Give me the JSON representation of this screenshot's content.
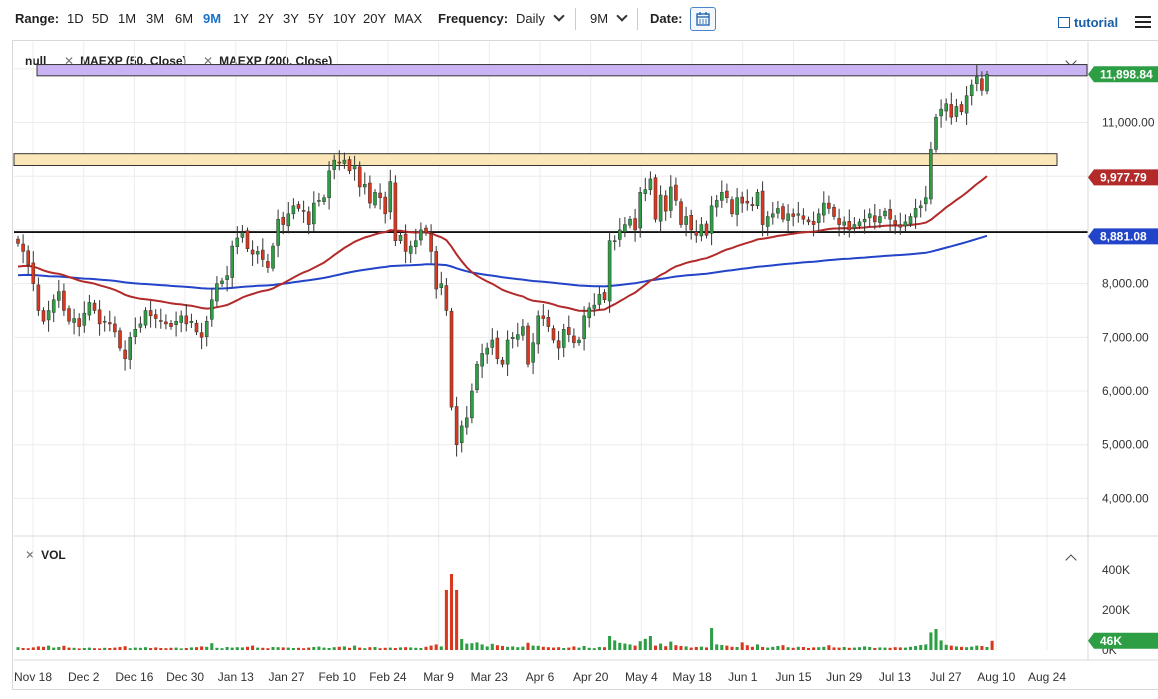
{
  "toolbar": {
    "range_label": "Range:",
    "ranges": [
      "1D",
      "5D",
      "1M",
      "3M",
      "6M",
      "9M",
      "1Y",
      "2Y",
      "3Y",
      "5Y",
      "10Y",
      "20Y",
      "MAX"
    ],
    "active_range": "9M",
    "frequency_label": "Frequency:",
    "frequency_value": "Daily",
    "period_value": "9M",
    "date_label": "Date:",
    "tutorial_label": "tutorial"
  },
  "legend": {
    "symbol": "null",
    "study1": "MAEXP (50, Close)",
    "study2": "MAEXP (200, Close)",
    "vol": "VOL"
  },
  "colors": {
    "up": "#2e9e45",
    "down": "#d9381e",
    "ma50": "#b22a2a",
    "ma200": "#2244c8",
    "zone_resistance": "#c9b3f2",
    "zone_support": "#fbe6b8",
    "accent": "#1a73c8"
  },
  "chart_data": {
    "type": "candlestick",
    "x_labels": [
      "Nov 18",
      "Dec 2",
      "Dec 16",
      "Dec 30",
      "Jan 13",
      "Jan 27",
      "Feb 10",
      "Feb 24",
      "Mar 9",
      "Mar 23",
      "Apr 6",
      "Apr 20",
      "May 4",
      "May 18",
      "Jun 1",
      "Jun 15",
      "Jun 29",
      "Jul 13",
      "Jul 27",
      "Aug 10",
      "Aug 24"
    ],
    "y_ticks": [
      "4,000.00",
      "5,000.00",
      "6,000.00",
      "7,000.00",
      "8,000.00",
      "11,000.00"
    ],
    "ylim": [
      3300,
      12500
    ],
    "price_badges": [
      {
        "label": "11,898.84",
        "value": 11898.84,
        "color": "#2e9e45"
      },
      {
        "label": "9,977.79",
        "value": 9977.79,
        "color": "#b22a2a"
      },
      {
        "label": "8,881.08",
        "value": 8881.08,
        "color": "#2244c8"
      }
    ],
    "horizontal_line": 8960,
    "zones": [
      {
        "from": 11870,
        "to": 12080,
        "color": "#c9b3f2"
      },
      {
        "from": 10200,
        "to": 10420,
        "color": "#fbe6b8"
      }
    ],
    "closes": [
      8750,
      8600,
      8350,
      8000,
      7500,
      7300,
      7500,
      7700,
      7850,
      7500,
      7300,
      7350,
      7200,
      7450,
      7650,
      7500,
      7250,
      7300,
      7250,
      7100,
      6800,
      6600,
      7000,
      7150,
      7250,
      7500,
      7400,
      7350,
      7300,
      7250,
      7200,
      7300,
      7400,
      7250,
      7300,
      7100,
      7000,
      7300,
      7700,
      8000,
      8050,
      8150,
      8700,
      8850,
      8950,
      8650,
      8550,
      8600,
      8450,
      8300,
      8700,
      9200,
      9100,
      9300,
      9450,
      9400,
      9350,
      9100,
      9500,
      9550,
      9600,
      10100,
      10300,
      10250,
      10300,
      10100,
      10200,
      9800,
      9850,
      9500,
      9700,
      9600,
      9300,
      9900,
      8800,
      8900,
      8600,
      8700,
      8800,
      9000,
      8950,
      8600,
      7900,
      8000,
      7500,
      5700,
      5000,
      5350,
      5500,
      6000,
      6500,
      6700,
      6800,
      6950,
      6600,
      6500,
      6950,
      7000,
      7050,
      7200,
      6500,
      6900,
      7400,
      7350,
      7200,
      6950,
      6800,
      7150,
      7050,
      6900,
      6950,
      7400,
      7550,
      7600,
      7800,
      7700,
      8800,
      8800,
      9000,
      9100,
      9200,
      9000,
      9700,
      9750,
      9950,
      9200,
      9650,
      9350,
      9800,
      9550,
      9100,
      9250,
      9000,
      8900,
      9100,
      8900,
      9450,
      9550,
      9700,
      9600,
      9300,
      9600,
      9500,
      9500,
      9450,
      9700,
      9100,
      9250,
      9300,
      9400,
      9200,
      9300,
      9250,
      9300,
      9200,
      9150,
      9100,
      9300,
      9500,
      9400,
      9250,
      9100,
      9150,
      9000,
      9100,
      9150,
      9200,
      9300,
      9150,
      9250,
      9350,
      9200,
      9100,
      9050,
      9150,
      9250,
      9400,
      9450,
      9600,
      10500,
      11100,
      11250,
      11350,
      11100,
      11300,
      11200,
      11500,
      11700,
      11850,
      11600,
      11898.84
    ],
    "volumes": [
      14000,
      10000,
      9000,
      13000,
      18000,
      16000,
      22000,
      12000,
      15000,
      21000,
      12000,
      11000,
      8000,
      10000,
      12000,
      9000,
      8000,
      11000,
      10000,
      12000,
      15000,
      19000,
      9000,
      12000,
      11000,
      14000,
      10000,
      13000,
      10000,
      9000,
      11000,
      12000,
      8000,
      10000,
      13000,
      14000,
      18000,
      16000,
      34000,
      11000,
      9000,
      15000,
      12000,
      14000,
      13000,
      16000,
      22000,
      12000,
      11000,
      9000,
      15000,
      14000,
      13000,
      12000,
      10000,
      11000,
      9000,
      12000,
      15000,
      17000,
      12000,
      10000,
      14000,
      16000,
      18000,
      11000,
      22000,
      12000,
      9000,
      14000,
      15000,
      9000,
      11000,
      12000,
      10000,
      13000,
      14000,
      13000,
      11000,
      10000,
      16000,
      22000,
      28000,
      18000,
      300000,
      380000,
      300000,
      55000,
      32000,
      34000,
      38000,
      28000,
      18000,
      31000,
      24000,
      20000,
      16000,
      18000,
      14000,
      17000,
      36000,
      22000,
      21000,
      16000,
      14000,
      12000,
      14000,
      10000,
      12000,
      18000,
      12000,
      20000,
      11000,
      9000,
      15000,
      14000,
      70000,
      48000,
      36000,
      32000,
      28000,
      22000,
      44000,
      56000,
      70000,
      22000,
      32000,
      19000,
      42000,
      24000,
      20000,
      18000,
      12000,
      15000,
      17000,
      13000,
      110000,
      28000,
      25000,
      22000,
      16000,
      15000,
      38000,
      24000,
      16000,
      28000,
      15000,
      12000,
      16000,
      20000,
      24000,
      14000,
      11000,
      16000,
      15000,
      10000,
      13000,
      14000,
      16000,
      24000,
      13000,
      12000,
      15000,
      11000,
      12000,
      14000,
      18000,
      15000,
      10000,
      13000,
      12000,
      11000,
      14000,
      13000,
      12000,
      16000,
      20000,
      25000,
      28000,
      88000,
      105000,
      48000,
      26000,
      22000,
      18000,
      16000,
      14000,
      17000,
      22000,
      20000,
      15000,
      46000
    ],
    "vol_ticks": [
      "400K",
      "200K",
      "0K"
    ],
    "vol_badge": "46K"
  }
}
